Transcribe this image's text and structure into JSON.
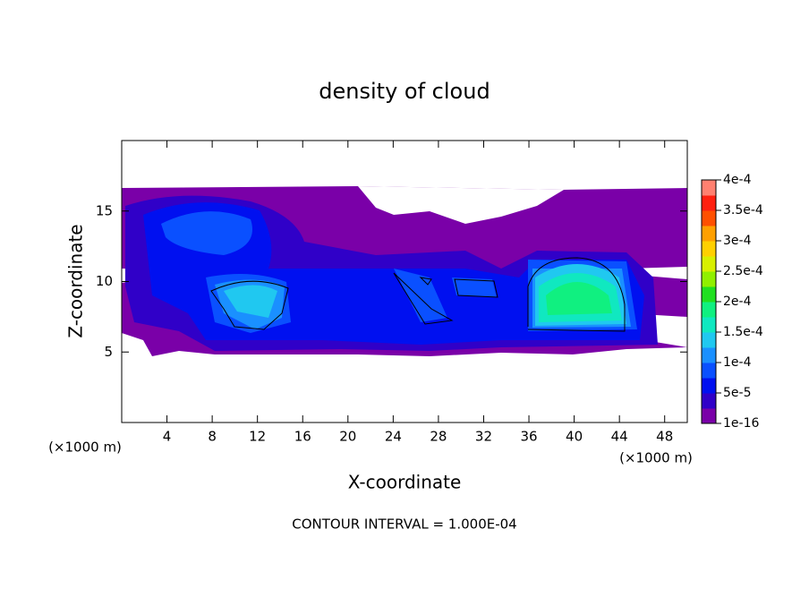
{
  "chart_data": {
    "type": "contour",
    "title": "density of cloud",
    "x_label": "X-coordinate",
    "y_label": "Z-coordinate",
    "x_unit_label": "(×1000 m)",
    "y_unit_label": "(×1000 m)",
    "note": "CONTOUR INTERVAL = 1.000E-04",
    "xlim": [
      0,
      50
    ],
    "xticks": [
      4,
      8,
      12,
      16,
      20,
      24,
      28,
      32,
      36,
      40,
      44,
      48
    ],
    "ylim": [
      0,
      20
    ],
    "yticks": [
      5,
      10,
      15
    ],
    "colorbar": {
      "levels": [
        {
          "value": 1e-16,
          "label": "1e-16"
        },
        {
          "value": 5e-05,
          "label": "5e-5"
        },
        {
          "value": 0.0001,
          "label": "1e-4"
        },
        {
          "value": 0.00015,
          "label": "1.5e-4"
        },
        {
          "value": 0.0002,
          "label": "2e-4"
        },
        {
          "value": 0.00025,
          "label": "2.5e-4"
        },
        {
          "value": 0.0003,
          "label": "3e-4"
        },
        {
          "value": 0.00035,
          "label": "3.5e-4"
        },
        {
          "value": 0.0004,
          "label": "4e-4"
        }
      ],
      "colors": [
        "#7a00a8",
        "#3000c8",
        "#0010f0",
        "#0a50ff",
        "#1a90ff",
        "#20c8f0",
        "#10e8c0",
        "#10f080",
        "#20e020",
        "#90f000",
        "#d8f000",
        "#ffd000",
        "#ffa000",
        "#ff5000",
        "#ff2010",
        "#ff8070"
      ]
    }
  }
}
